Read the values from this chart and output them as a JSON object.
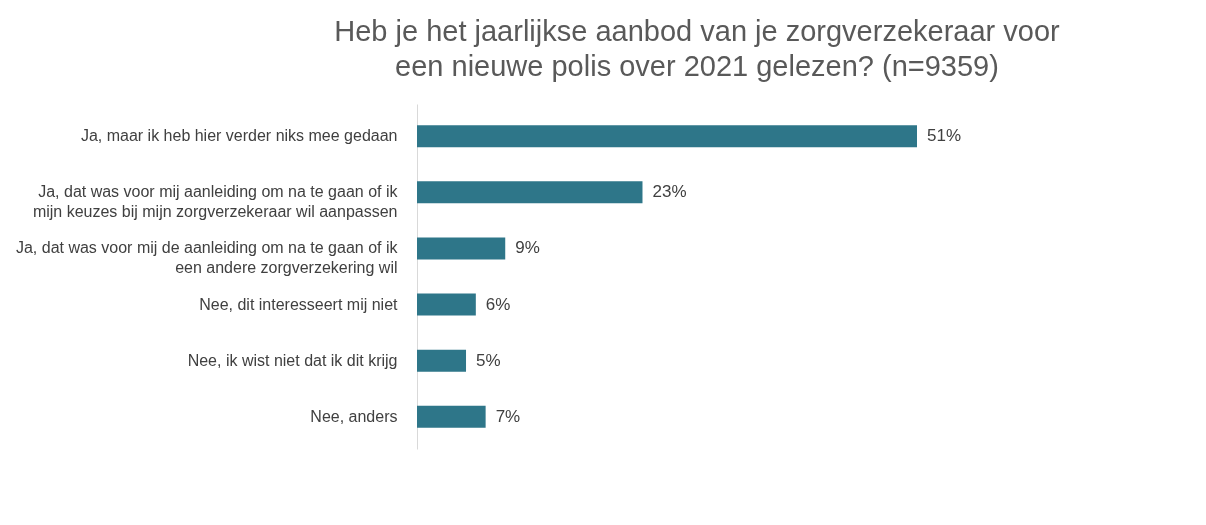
{
  "chart_data": {
    "type": "bar",
    "orientation": "horizontal",
    "title": "Heb je het jaarlijkse aanbod van je zorgverzekeraar voor een nieuwe polis over 2021 gelezen? (n=9359)",
    "categories": [
      "Ja, maar ik heb hier verder niks mee gedaan",
      "Ja, dat was voor mij aanleiding om na te gaan of ik mijn keuzes bij mijn zorgverzekeraar wil aanpassen",
      "Ja, dat was voor mij de aanleiding om na te gaan of ik een andere zorgverzekering wil",
      "Nee, dit interesseert mij niet",
      "Nee, ik wist niet dat ik dit krijg",
      "Nee, anders"
    ],
    "values": [
      51,
      23,
      9,
      6,
      5,
      7
    ],
    "value_labels": [
      "51%",
      "23%",
      "9%",
      "6%",
      "5%",
      "7%"
    ],
    "color": "#2e7689",
    "grid": false
  }
}
